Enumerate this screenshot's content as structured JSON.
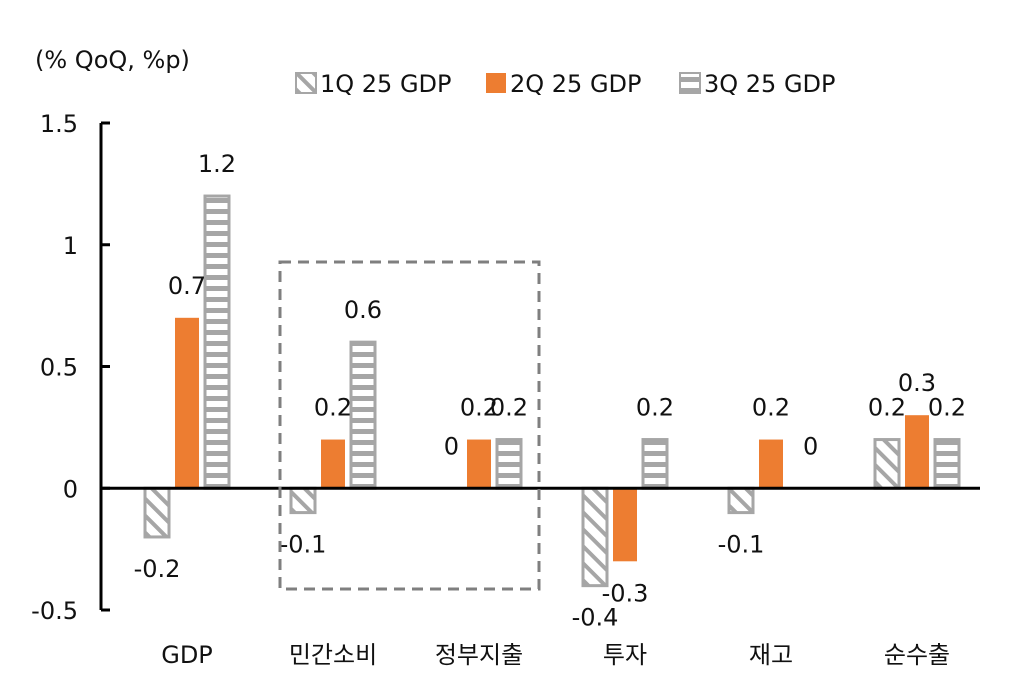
{
  "unit_label": "(% QoQ, %p)",
  "chart_data": {
    "type": "bar",
    "title": "",
    "ylabel": "(% QoQ, %p)",
    "xlabel": "",
    "ylim": [
      -0.5,
      1.5
    ],
    "yticks": [
      {
        "value": 1.5,
        "label": "1.5"
      },
      {
        "value": 1,
        "label": "1"
      },
      {
        "value": 0.5,
        "label": "0.5"
      },
      {
        "value": 0,
        "label": "0"
      },
      {
        "value": -0.5,
        "label": "-0.5"
      }
    ],
    "categories": [
      "GDP",
      "민간소비",
      "정부지출",
      "투자",
      "재고",
      "순수출"
    ],
    "series": [
      {
        "name": "1Q 25 GDP",
        "pattern": "diagonal",
        "values": [
          -0.2,
          -0.1,
          0,
          -0.4,
          -0.1,
          0.2
        ],
        "labels": [
          "-0.2",
          "-0.1",
          "0",
          "-0.4",
          "-0.1",
          "0.2"
        ]
      },
      {
        "name": "2Q 25 GDP",
        "pattern": "solid",
        "values": [
          0.7,
          0.2,
          0.2,
          -0.3,
          0.2,
          0.3
        ],
        "labels": [
          "0.7",
          "0.2",
          "0.2",
          "-0.3",
          "0.2",
          "0.3"
        ]
      },
      {
        "name": "3Q 25 GDP",
        "pattern": "horizontal",
        "values": [
          1.2,
          0.6,
          0.2,
          0.2,
          0,
          0.2
        ],
        "labels": [
          "1.2",
          "0.6",
          "0.2",
          "0.2",
          "0",
          "0.2"
        ]
      }
    ],
    "legend": "top",
    "highlight": {
      "categories": [
        "민간소비",
        "정부지출"
      ],
      "style": "dashed-box"
    },
    "colors": {
      "series1": "#a6a6a6",
      "series2": "#ed7d31",
      "series3": "#a6a6a6",
      "axis": "#000000",
      "highlight_box": "#7f7f7f"
    }
  }
}
